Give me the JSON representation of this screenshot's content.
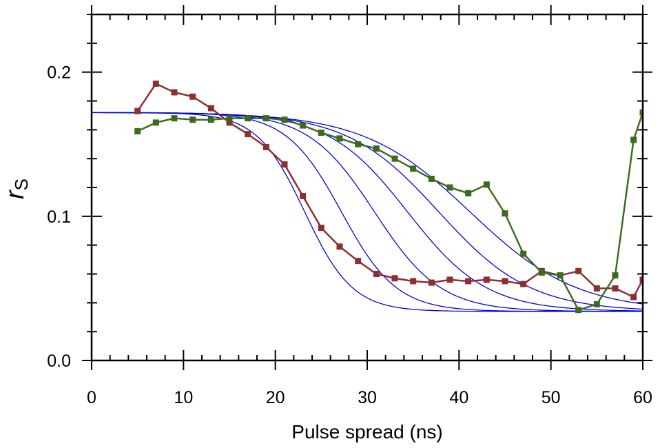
{
  "chart_data": {
    "type": "line",
    "title": "",
    "xlabel": "Pulse spread (ns)",
    "ylabel": "r",
    "ylabel_subscript": "S",
    "xlim": [
      0,
      60
    ],
    "ylim": [
      0,
      0.24
    ],
    "x_ticks": [
      0,
      10,
      20,
      30,
      40,
      50,
      60
    ],
    "x_tick_labels": [
      "0",
      "10",
      "20",
      "30",
      "40",
      "50",
      "60"
    ],
    "y_ticks": [
      0,
      0.1,
      0.2
    ],
    "y_tick_labels": [
      "0.0",
      "0.1",
      "0.2"
    ],
    "grid": false,
    "legend": "none",
    "series": [
      {
        "color": "#8b3030",
        "marker": "square",
        "points": [
          [
            5,
            0.173
          ],
          [
            7,
            0.192
          ],
          [
            9,
            0.186
          ],
          [
            11,
            0.183
          ],
          [
            13,
            0.175
          ],
          [
            15,
            0.165
          ],
          [
            17,
            0.157
          ],
          [
            19,
            0.148
          ],
          [
            21,
            0.136
          ],
          [
            23,
            0.114
          ],
          [
            25,
            0.092
          ],
          [
            27,
            0.079
          ],
          [
            29,
            0.069
          ],
          [
            31,
            0.06
          ],
          [
            33,
            0.057
          ],
          [
            35,
            0.055
          ],
          [
            37,
            0.054
          ],
          [
            39,
            0.056
          ],
          [
            41,
            0.055
          ],
          [
            43,
            0.056
          ],
          [
            45,
            0.055
          ],
          [
            47,
            0.053
          ],
          [
            49,
            0.062
          ],
          [
            51,
            0.059
          ],
          [
            53,
            0.062
          ],
          [
            55,
            0.05
          ],
          [
            57,
            0.05
          ],
          [
            59,
            0.044
          ],
          [
            60,
            0.056
          ]
        ]
      },
      {
        "color": "#3d6b1e",
        "marker": "square",
        "points": [
          [
            5,
            0.159
          ],
          [
            7,
            0.165
          ],
          [
            9,
            0.168
          ],
          [
            11,
            0.167
          ],
          [
            13,
            0.167
          ],
          [
            15,
            0.168
          ],
          [
            17,
            0.168
          ],
          [
            19,
            0.168
          ],
          [
            21,
            0.167
          ],
          [
            23,
            0.163
          ],
          [
            25,
            0.158
          ],
          [
            27,
            0.154
          ],
          [
            29,
            0.15
          ],
          [
            31,
            0.147
          ],
          [
            33,
            0.14
          ],
          [
            35,
            0.133
          ],
          [
            37,
            0.126
          ],
          [
            39,
            0.12
          ],
          [
            41,
            0.116
          ],
          [
            43,
            0.122
          ],
          [
            45,
            0.102
          ],
          [
            47,
            0.074
          ],
          [
            49,
            0.061
          ],
          [
            51,
            0.059
          ],
          [
            53,
            0.035
          ],
          [
            55,
            0.039
          ],
          [
            57,
            0.059
          ],
          [
            59,
            0.153
          ],
          [
            60,
            0.172
          ]
        ]
      }
    ],
    "model_curves": {
      "color": "#0000dd",
      "x_range": [
        0,
        60
      ],
      "plateau_start": 0.172,
      "plateau_end": 0.034,
      "midpoints": [
        23.2,
        27.2,
        30.8,
        34.4,
        37.8,
        41.2
      ],
      "widths": [
        2.6,
        3.0,
        3.6,
        4.3,
        5.0,
        5.8
      ]
    }
  }
}
